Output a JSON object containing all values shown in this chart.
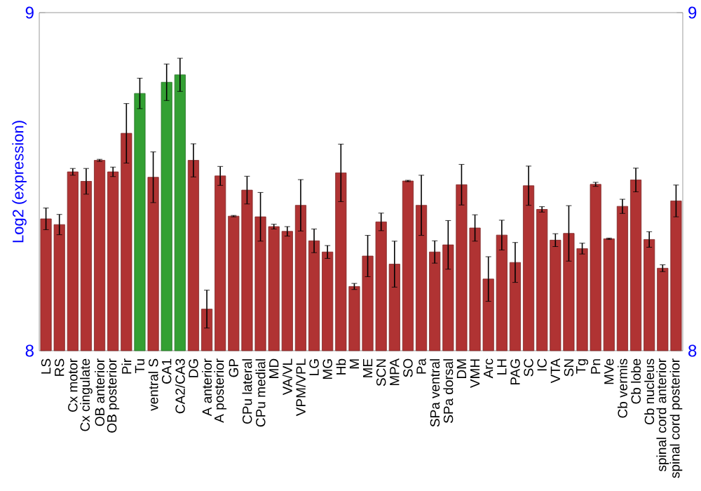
{
  "chart_data": {
    "type": "bar",
    "ylabel": "Log2 (expression)",
    "categories": [
      "LS",
      "RS",
      "Cx motor",
      "Cx cingulate",
      "OB anterior",
      "OB posterior",
      "Pir",
      "Tu",
      "ventral S",
      "CA1",
      "CA2/CA3",
      "DG",
      "A anterior",
      "A posterior",
      "GP",
      "CPu lateral",
      "CPu medial",
      "MD",
      "VA/VL",
      "VPM/VPL",
      "LG",
      "MG",
      "Hb",
      "M",
      "ME",
      "SCN",
      "MPA",
      "SO",
      "Pa",
      "SPa ventral",
      "SPa dorsal",
      "DM",
      "VMH",
      "Arc",
      "LH",
      "PAG",
      "SC",
      "IC",
      "VTA",
      "SN",
      "Tg",
      "Pn",
      "MVe",
      "Cb vermis",
      "Cb lobe",
      "Cb nucleus",
      "spinal cord anterior",
      "spinal cord posterior"
    ],
    "values": [
      8.39,
      8.373,
      8.529,
      8.501,
      8.563,
      8.529,
      8.643,
      8.761,
      8.513,
      8.794,
      8.816,
      8.563,
      8.123,
      8.517,
      8.398,
      8.475,
      8.396,
      8.367,
      8.353,
      8.43,
      8.325,
      8.292,
      8.526,
      8.19,
      8.28,
      8.381,
      8.256,
      8.502,
      8.43,
      8.292,
      8.313,
      8.491,
      8.363,
      8.212,
      8.342,
      8.261,
      8.488,
      8.418,
      8.327,
      8.347,
      8.302,
      8.492,
      8.331,
      8.427,
      8.505,
      8.329,
      8.244,
      8.443
    ],
    "errors": [
      0.032,
      0.03,
      0.01,
      0.038,
      0.003,
      0.014,
      0.088,
      0.045,
      0.075,
      0.054,
      0.049,
      0.049,
      0.056,
      0.028,
      0.002,
      0.041,
      0.072,
      0.007,
      0.014,
      0.076,
      0.035,
      0.019,
      0.085,
      0.009,
      0.061,
      0.026,
      0.068,
      0.002,
      0.089,
      0.033,
      0.072,
      0.06,
      0.039,
      0.066,
      0.044,
      0.059,
      0.058,
      0.008,
      0.019,
      0.082,
      0.016,
      0.006,
      0.002,
      0.021,
      0.035,
      0.023,
      0.01,
      0.047
    ],
    "colors": [
      "#b03333",
      "#b03333",
      "#b03333",
      "#b03333",
      "#b03333",
      "#b03333",
      "#b03333",
      "#33a033",
      "#b03333",
      "#33a033",
      "#33a033",
      "#b03333",
      "#b03333",
      "#b03333",
      "#b03333",
      "#b03333",
      "#b03333",
      "#b03333",
      "#b03333",
      "#b03333",
      "#b03333",
      "#b03333",
      "#b03333",
      "#b03333",
      "#b03333",
      "#b03333",
      "#b03333",
      "#b03333",
      "#b03333",
      "#b03333",
      "#b03333",
      "#b03333",
      "#b03333",
      "#b03333",
      "#b03333",
      "#b03333",
      "#b03333",
      "#b03333",
      "#b03333",
      "#b03333",
      "#b03333",
      "#b03333",
      "#b03333",
      "#b03333",
      "#b03333",
      "#b03333",
      "#b03333",
      "#b03333"
    ],
    "ylim": [
      8,
      9
    ],
    "yticks": [
      8,
      9
    ],
    "y2lim": [
      8,
      9
    ],
    "y2ticks": [
      8,
      9
    ]
  }
}
